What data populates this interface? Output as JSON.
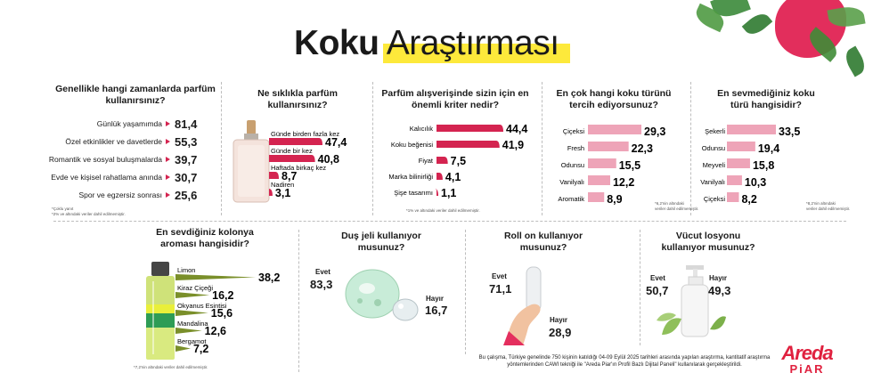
{
  "title": {
    "bold": "Koku",
    "rest": "Araştırması"
  },
  "colors": {
    "accent_red": "#d42450",
    "pink": "#eea4b8",
    "green": "#7a8f2a",
    "highlight": "#fde93b",
    "brand": "#e0213f"
  },
  "footer": "Bu çalışma, Türkiye genelinde 750 kişinin katıldığı 04-09 Eylül 2025 tarihleri arasında yapılan araştırma, kantitatif araştırma yöntemlerinden CAWI tekniği ile \"Areda Piar'ın Profil Bazlı Dijital Paneli\" kullanılarak gerçekleştirildi.",
  "logo": {
    "line1": "Areda",
    "line2": "PiAR"
  },
  "chart_data": [
    {
      "type": "bar",
      "question": "Genellikle hangi zamanlarda parfüm kullanırsınız?",
      "categories": [
        "Günlük yaşamımda",
        "Özel etkinlikler ve davetlerde",
        "Romantik ve sosyal buluşmalarda",
        "Evde ve kişisel rahatlama anında",
        "Spor ve egzersiz sonrası"
      ],
      "values": [
        "81,4",
        "55,3",
        "39,7",
        "30,7",
        "25,6"
      ],
      "notes": [
        "*Çoklu yanıt",
        "*2% ve altındaki veriler dahil edilmemiştir."
      ]
    },
    {
      "type": "bar",
      "question": "Ne sıklıkla parfüm kullanırsınız?",
      "categories": [
        "Günde birden fazla kez",
        "Günde bir kez",
        "Haftada birkaç kez",
        "Nadiren"
      ],
      "values": [
        "47,4",
        "40,8",
        "8,7",
        "3,1"
      ],
      "numbers": [
        47.4,
        40.8,
        8.7,
        3.1
      ]
    },
    {
      "type": "bar",
      "question": "Parfüm alışverişinde sizin için en önemli kriter nedir?",
      "categories": [
        "Kalıcılık",
        "Koku beğenisi",
        "Fiyat",
        "Marka bilinirliği",
        "Şişe tasarımı"
      ],
      "values": [
        "44,4",
        "41,9",
        "7,5",
        "4,1",
        "1,1"
      ],
      "numbers": [
        44.4,
        41.9,
        7.5,
        4.1,
        1.1
      ],
      "notes": [
        "*1% ve altındaki veriler dahil edilmemiştir."
      ]
    },
    {
      "type": "bar",
      "question": "En çok hangi koku türünü tercih ediyorsunuz?",
      "categories": [
        "Çiçeksi",
        "Fresh",
        "Odunsu",
        "Vanilyalı",
        "Aromatik"
      ],
      "values": [
        "29,3",
        "22,3",
        "15,5",
        "12,2",
        "8,9"
      ],
      "numbers": [
        29.3,
        22.3,
        15.5,
        12.2,
        8.9
      ],
      "notes": [
        "*6,2'nin altındaki",
        "veriler dahil edilmemiştir."
      ]
    },
    {
      "type": "bar",
      "question": "En sevmediğiniz koku türü hangisidir?",
      "categories": [
        "Şekerli",
        "Odunsu",
        "Meyveli",
        "Vanilyalı",
        "Çiçeksi"
      ],
      "values": [
        "33,5",
        "19,4",
        "15,8",
        "10,3",
        "8,2"
      ],
      "numbers": [
        33.5,
        19.4,
        15.8,
        10.3,
        8.2
      ],
      "notes": [
        "*8,2'nin altındaki",
        "veriler dahil edilmemiştir."
      ]
    },
    {
      "type": "bar",
      "question": "En sevdiğiniz kolonya aroması hangisidir?",
      "categories": [
        "Limon",
        "Kiraz Çiçeği",
        "Okyanus Esintisi",
        "Mandalina",
        "Bergamot"
      ],
      "values": [
        "38,2",
        "16,2",
        "15,6",
        "12,6",
        "7,2"
      ],
      "numbers": [
        38.2,
        16.2,
        15.6,
        12.6,
        7.2
      ],
      "notes": [
        "*7,2'nin altındaki veriler dahil edilmemiştir."
      ]
    },
    {
      "type": "pie",
      "question": "Duş jeli kullanıyor musunuz?",
      "categories": [
        "Evet",
        "Hayır"
      ],
      "values": [
        "83,3",
        "16,7"
      ]
    },
    {
      "type": "pie",
      "question": "Roll on kullanıyor musunuz?",
      "categories": [
        "Evet",
        "Hayır"
      ],
      "values": [
        "71,1",
        "28,9"
      ]
    },
    {
      "type": "pie",
      "question": "Vücut losyonu kullanıyor musunuz?",
      "categories": [
        "Evet",
        "Hayır"
      ],
      "values": [
        "50,7",
        "49,3"
      ]
    }
  ]
}
